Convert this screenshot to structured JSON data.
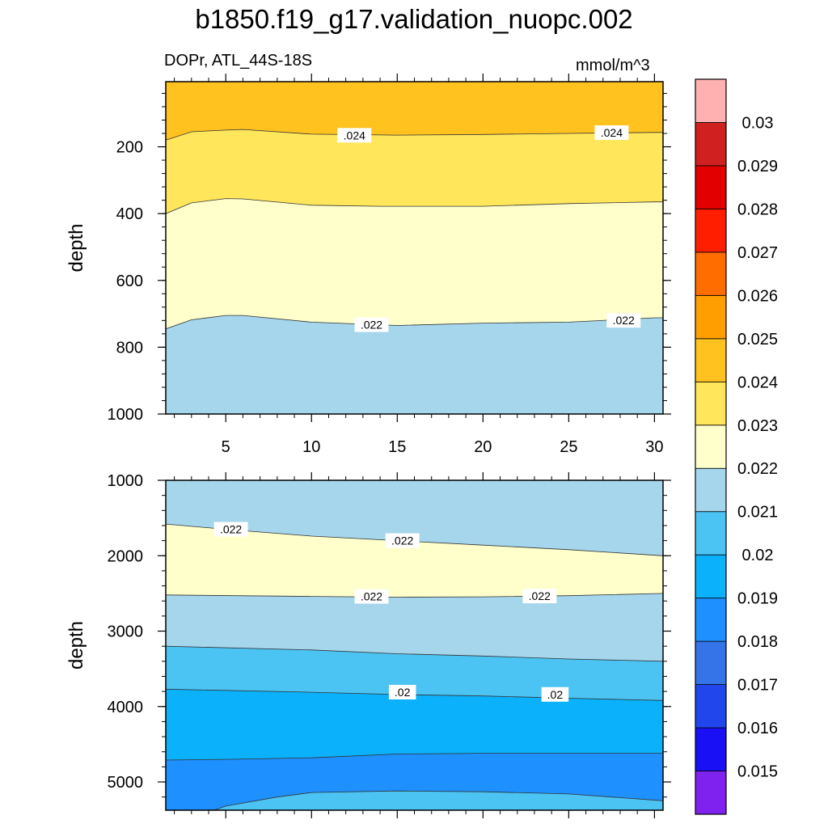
{
  "chart_data": {
    "type": "heatmap",
    "subtype": "filled-contour",
    "title": "b1850.f19_g17.validation_nuopc.002",
    "left_label": "DOPr, ATL_44S-18S",
    "right_label": "mmol/m^3",
    "xlim": [
      1.5,
      30.5
    ],
    "xticks": [
      5,
      10,
      15,
      20,
      25,
      30
    ],
    "xtick_labels": [
      "5",
      "10",
      "15",
      "20",
      "25",
      "30"
    ],
    "xlabel": "",
    "colorbar": {
      "colors": [
        "#7f22ef",
        "#1a10f5",
        "#2146ec",
        "#3473e8",
        "#1e90ff",
        "#0bb1fa",
        "#4bc4f4",
        "#a5d6ec",
        "#ffffcc",
        "#ffe65a",
        "#ffc21e",
        "#ff9e00",
        "#ff6c00",
        "#ff1f00",
        "#e20000",
        "#d0201f",
        "#ffb1b1"
      ],
      "levels": [
        "0.015",
        "0.016",
        "0.017",
        "0.018",
        "0.019",
        "0.02",
        "0.021",
        "0.022",
        "0.023",
        "0.024",
        "0.025",
        "0.026",
        "0.027",
        "0.028",
        "0.029",
        "0.03"
      ]
    },
    "panels": [
      {
        "name": "upper",
        "ylabel": "depth",
        "ylim": [
          1000,
          5
        ],
        "yticks": [
          200,
          400,
          600,
          800,
          1000
        ],
        "ytick_labels": [
          "200",
          "400",
          "600",
          "800",
          "1000"
        ],
        "background": "#ffc21e",
        "bands": [
          {
            "fill": "#ffe65a",
            "boundary": [
              [
                1.5,
                180
              ],
              [
                3,
                155
              ],
              [
                5,
                150
              ],
              [
                6,
                148
              ],
              [
                10,
                162
              ],
              [
                15,
                165
              ],
              [
                20,
                163
              ],
              [
                25,
                160
              ],
              [
                30,
                157
              ],
              [
                30.5,
                157
              ]
            ]
          },
          {
            "fill": "#ffffcc",
            "boundary": [
              [
                1.5,
                400
              ],
              [
                3,
                368
              ],
              [
                5,
                355
              ],
              [
                6,
                356
              ],
              [
                10,
                375
              ],
              [
                14,
                378
              ],
              [
                20,
                378
              ],
              [
                25,
                370
              ],
              [
                30,
                365
              ],
              [
                30.5,
                365
              ]
            ]
          },
          {
            "fill": "#a5d6ec",
            "boundary": [
              [
                1.5,
                745
              ],
              [
                3,
                718
              ],
              [
                5,
                705
              ],
              [
                6,
                705
              ],
              [
                10,
                725
              ],
              [
                15,
                735
              ],
              [
                20,
                728
              ],
              [
                25,
                725
              ],
              [
                30,
                712
              ],
              [
                30.5,
                712
              ]
            ]
          }
        ],
        "contour_labels": [
          {
            "text": ".024",
            "x": 12.5,
            "y": 168
          },
          {
            "text": ".024",
            "x": 27.5,
            "y": 160
          },
          {
            "text": ".022",
            "x": 13.5,
            "y": 735
          },
          {
            "text": ".022",
            "x": 28.2,
            "y": 722
          }
        ]
      },
      {
        "name": "lower",
        "ylabel": "depth",
        "ylim": [
          5375,
          1000
        ],
        "yticks": [
          1000,
          2000,
          3000,
          4000,
          5000
        ],
        "ytick_labels": [
          "1000",
          "2000",
          "3000",
          "4000",
          "5000"
        ],
        "background": "#a5d6ec",
        "bands": [
          {
            "fill": "#ffffcc",
            "boundary": [
              [
                1.5,
                1580
              ],
              [
                5,
                1650
              ],
              [
                10,
                1740
              ],
              [
                15,
                1800
              ],
              [
                20,
                1860
              ],
              [
                25,
                1920
              ],
              [
                30.5,
                2000
              ]
            ]
          },
          {
            "fill": "#a5d6ec",
            "boundary": [
              [
                1.5,
                2520
              ],
              [
                10,
                2540
              ],
              [
                15,
                2550
              ],
              [
                20,
                2545
              ],
              [
                25,
                2530
              ],
              [
                30.5,
                2500
              ]
            ]
          },
          {
            "fill": "#4bc4f4",
            "boundary": [
              [
                1.5,
                3200
              ],
              [
                10,
                3250
              ],
              [
                15,
                3300
              ],
              [
                20,
                3330
              ],
              [
                25,
                3370
              ],
              [
                30.5,
                3400
              ]
            ]
          },
          {
            "fill": "#0bb1fa",
            "boundary": [
              [
                1.5,
                3770
              ],
              [
                10,
                3810
              ],
              [
                15,
                3840
              ],
              [
                20,
                3860
              ],
              [
                25,
                3890
              ],
              [
                30.5,
                3920
              ]
            ]
          },
          {
            "fill": "#1e90ff",
            "boundary": [
              [
                1.5,
                4710
              ],
              [
                5,
                4700
              ],
              [
                10,
                4680
              ],
              [
                15,
                4630
              ],
              [
                20,
                4620
              ],
              [
                25,
                4620
              ],
              [
                30.5,
                4620
              ]
            ]
          },
          {
            "fill": "#4bc4f4",
            "boundary": [
              [
                1.5,
                5400
              ],
              [
                4,
                5400
              ],
              [
                5,
                5320
              ],
              [
                8,
                5200
              ],
              [
                10,
                5140
              ],
              [
                15,
                5120
              ],
              [
                20,
                5130
              ],
              [
                25,
                5160
              ],
              [
                30.5,
                5250
              ]
            ]
          }
        ],
        "contour_labels": [
          {
            "text": ".022",
            "x": 5.3,
            "y": 1660
          },
          {
            "text": ".022",
            "x": 15.3,
            "y": 1810
          },
          {
            "text": ".022",
            "x": 13.5,
            "y": 2550
          },
          {
            "text": ".022",
            "x": 23.3,
            "y": 2545
          },
          {
            "text": ".02",
            "x": 15.3,
            "y": 3820
          },
          {
            "text": ".02",
            "x": 24.2,
            "y": 3850
          }
        ]
      }
    ]
  }
}
